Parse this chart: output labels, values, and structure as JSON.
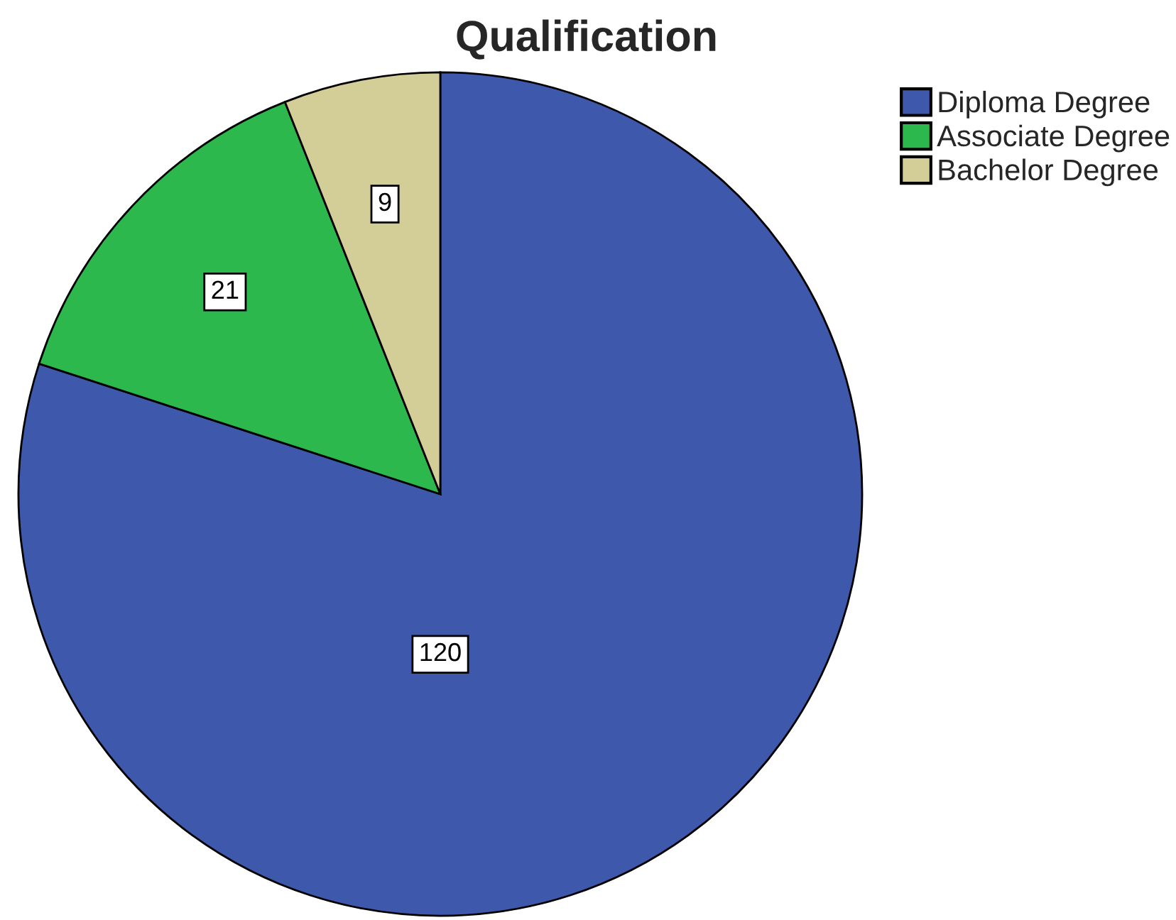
{
  "chart_data": {
    "type": "pie",
    "title": "Qualification",
    "categories": [
      "Diploma Degree",
      "Associate Degree",
      "Bachelor Degree"
    ],
    "values": [
      120,
      21,
      9
    ],
    "colors": [
      "#3e58ac",
      "#2db84d",
      "#d3ce97"
    ],
    "data_labels": true,
    "legend": "top right"
  }
}
